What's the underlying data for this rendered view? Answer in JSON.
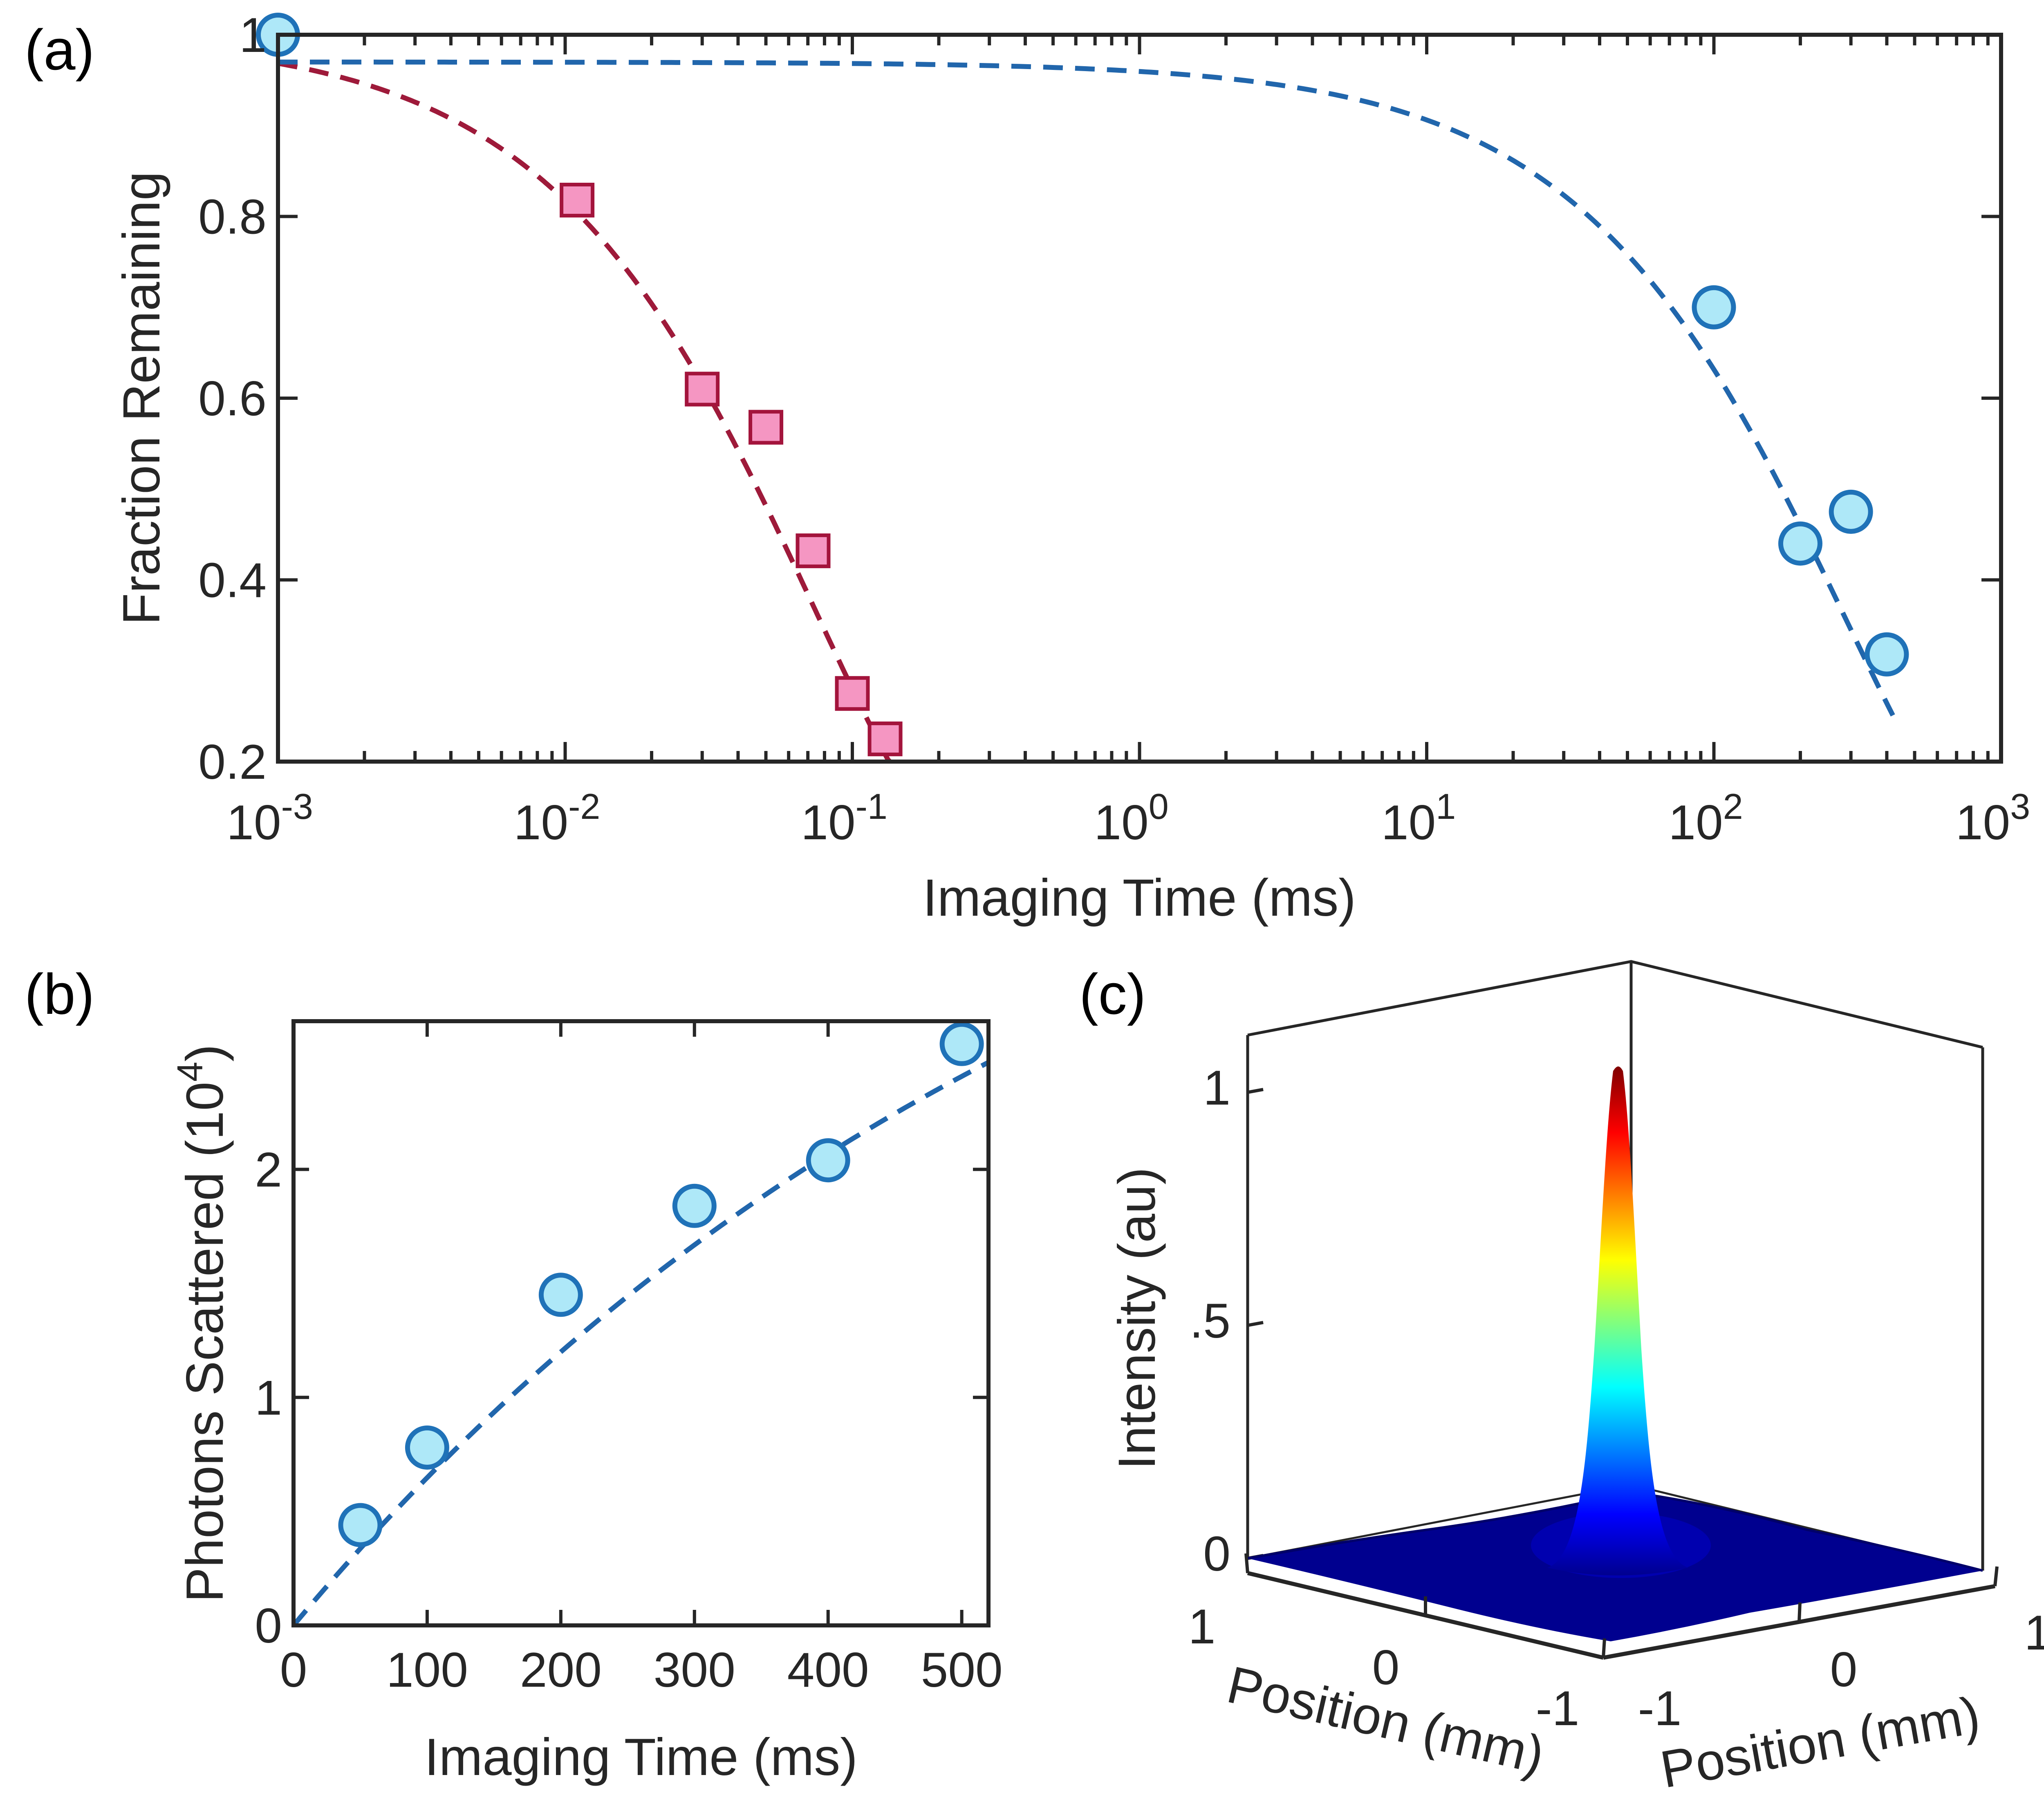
{
  "colors": {
    "axis": "#262626",
    "blue_line": "#2166ac",
    "blue_marker_face": "#aee8f8",
    "blue_marker_edge": "#1f72b8",
    "red_line": "#9e1a3a",
    "red_marker_face": "#f596c2",
    "red_marker_edge": "#a3143c"
  },
  "chart_data": [
    {
      "panel": "(a)",
      "type": "scatter",
      "xscale": "log",
      "xlabel": "Imaging Time (ms)",
      "ylabel": "Fraction Remaining",
      "xlim": [
        0.001,
        1000
      ],
      "ylim": [
        0.2,
        1.0
      ],
      "x_ticks": [
        {
          "base": "10",
          "exp": "-3"
        },
        {
          "base": "10",
          "exp": "-2"
        },
        {
          "base": "10",
          "exp": "-1"
        },
        {
          "base": "10",
          "exp": "0"
        },
        {
          "base": "10",
          "exp": "1"
        },
        {
          "base": "10",
          "exp": "2"
        },
        {
          "base": "10",
          "exp": "3"
        }
      ],
      "y_ticks": [
        "0.2",
        "0.4",
        "0.6",
        "0.8",
        "1"
      ],
      "series": [
        {
          "name": "red squares",
          "marker": "square",
          "x": [
            0.011,
            0.03,
            0.05,
            0.073,
            0.1,
            0.13
          ],
          "y": [
            0.818,
            0.61,
            0.568,
            0.432,
            0.275,
            0.225
          ]
        },
        {
          "name": "blue circles",
          "marker": "circle",
          "x": [
            0.001,
            100,
            200,
            300,
            400
          ],
          "y": [
            1.0,
            0.7,
            0.44,
            0.475,
            0.318
          ]
        }
      ],
      "fits": [
        {
          "name": "red fit",
          "style": "dashed",
          "tau": 0.074,
          "beta": 0.8,
          "offset": 1.0
        },
        {
          "name": "blue fit",
          "style": "dashed",
          "tau": 288,
          "beta": 0.8,
          "offset": 0.97
        }
      ]
    },
    {
      "panel": "(b)",
      "type": "scatter",
      "xlabel": "Imaging Time (ms)",
      "ylabel_main": "Photons Scattered (10",
      "ylabel_sup": "4",
      "ylabel_close": ")",
      "xlim": [
        0,
        520
      ],
      "ylim": [
        0,
        2.65
      ],
      "x_ticks": [
        "0",
        "100",
        "200",
        "300",
        "400",
        "500"
      ],
      "y_ticks": [
        "0",
        "1",
        "2"
      ],
      "series": [
        {
          "name": "blue circles",
          "marker": "circle",
          "x": [
            50,
            100,
            200,
            300,
            400,
            500
          ],
          "y": [
            0.44,
            0.78,
            1.45,
            1.84,
            2.04,
            2.55
          ]
        }
      ],
      "fits": [
        {
          "name": "blue fit",
          "style": "dashed",
          "amplitude": 4.35,
          "tau": 620
        }
      ]
    },
    {
      "panel": "(c)",
      "type": "surface",
      "zlabel": "Intensity (au)",
      "xlabel": "Position (mm)",
      "ylabel": "Position (mm)",
      "z_ticks": [
        "0",
        ".5",
        "1"
      ],
      "x_ticks": [
        "1",
        "0",
        "-1"
      ],
      "y_ticks": [
        "-1",
        "0",
        "1"
      ],
      "peak_intensity": 1.03,
      "colormap": [
        "#00008f",
        "#0000ff",
        "#00ffff",
        "#ffff00",
        "#ff0000",
        "#800000"
      ]
    }
  ]
}
